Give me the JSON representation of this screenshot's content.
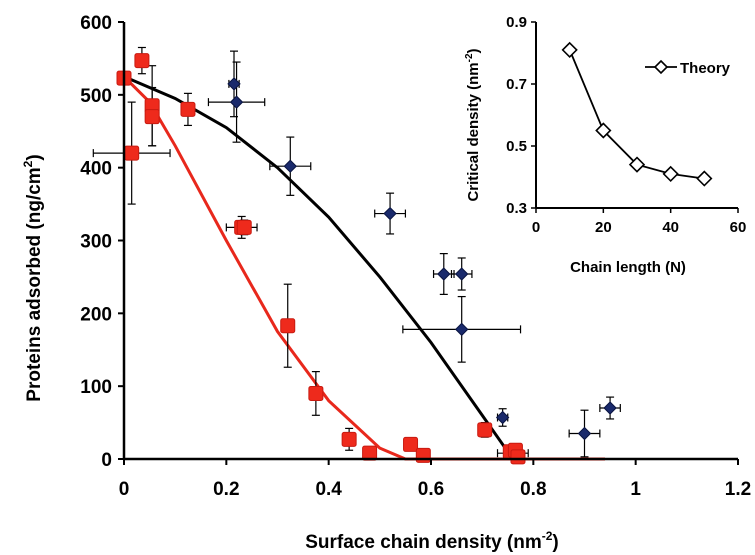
{
  "chart_data": [
    {
      "type": "scatter",
      "xlabel": "Surface chain density (nm",
      "xlabel_sup": "-2",
      "xlabel_end": ")",
      "ylabel": "Proteins adsorbed (ng/cm",
      "ylabel_sup": "2",
      "ylabel_end": ")",
      "xlim": [
        0,
        1.2
      ],
      "ylim": [
        0,
        600
      ],
      "xticks": [
        0,
        0.2,
        0.4,
        0.6,
        0.8,
        1,
        1.2
      ],
      "xtick_labels": [
        "0",
        "0.2",
        "0.4",
        "0.6",
        "0.8",
        "1",
        "1.2"
      ],
      "yticks": [
        0,
        100,
        200,
        300,
        400,
        500,
        600
      ],
      "ytick_labels": [
        "0",
        "100",
        "200",
        "300",
        "400",
        "500",
        "600"
      ],
      "grid": false,
      "series": [
        {
          "marker": "diamond",
          "color": "#1a2a6c",
          "points": [
            {
              "x": 0.215,
              "y": 515,
              "xerr": 0.01,
              "yerr": 45
            },
            {
              "x": 0.22,
              "y": 490,
              "xerr": 0.055,
              "yerr": 55
            },
            {
              "x": 0.325,
              "y": 402,
              "xerr": 0.04,
              "yerr": 40
            },
            {
              "x": 0.52,
              "y": 337,
              "xerr": 0.03,
              "yerr": 28
            },
            {
              "x": 0.625,
              "y": 254,
              "xerr": 0.02,
              "yerr": 28
            },
            {
              "x": 0.66,
              "y": 254,
              "xerr": 0.02,
              "yerr": 22
            },
            {
              "x": 0.66,
              "y": 178,
              "xerr": 0.115,
              "yerr": 45
            },
            {
              "x": 0.74,
              "y": 57,
              "xerr": 0.01,
              "yerr": 12
            },
            {
              "x": 0.76,
              "y": 8,
              "xerr": 0.03,
              "yerr": 8
            },
            {
              "x": 0.9,
              "y": 35,
              "xerr": 0.03,
              "yerr": 32
            },
            {
              "x": 0.95,
              "y": 70,
              "xerr": 0.02,
              "yerr": 15
            }
          ]
        },
        {
          "marker": "square",
          "color": "#ee2a1c",
          "points": [
            {
              "x": 0.0,
              "y": 523,
              "xerr": 0.0,
              "yerr": 0
            },
            {
              "x": 0.015,
              "y": 420,
              "xerr": 0.075,
              "yerr": 70
            },
            {
              "x": 0.035,
              "y": 547,
              "xerr": 0.01,
              "yerr": 18
            },
            {
              "x": 0.055,
              "y": 485,
              "xerr": 0.01,
              "yerr": 55
            },
            {
              "x": 0.055,
              "y": 470,
              "xerr": 0.01,
              "yerr": 40
            },
            {
              "x": 0.125,
              "y": 480,
              "xerr": 0.01,
              "yerr": 22
            },
            {
              "x": 0.23,
              "y": 318,
              "xerr": 0.03,
              "yerr": 15
            },
            {
              "x": 0.235,
              "y": 318,
              "xerr": 0.01,
              "yerr": 10
            },
            {
              "x": 0.32,
              "y": 183,
              "xerr": 0.01,
              "yerr": 57
            },
            {
              "x": 0.375,
              "y": 90,
              "xerr": 0.01,
              "yerr": 30
            },
            {
              "x": 0.44,
              "y": 27,
              "xerr": 0.01,
              "yerr": 15
            },
            {
              "x": 0.48,
              "y": 8,
              "xerr": 0.01,
              "yerr": 5
            },
            {
              "x": 0.56,
              "y": 20,
              "xerr": 0.01,
              "yerr": 5
            },
            {
              "x": 0.585,
              "y": 5,
              "xerr": 0.01,
              "yerr": 3
            },
            {
              "x": 0.705,
              "y": 40,
              "xerr": 0.01,
              "yerr": 10
            },
            {
              "x": 0.755,
              "y": 10,
              "xerr": 0.01,
              "yerr": 5
            },
            {
              "x": 0.765,
              "y": 12,
              "xerr": 0.01,
              "yerr": 5
            },
            {
              "x": 0.77,
              "y": 3,
              "xerr": 0.01,
              "yerr": 3
            }
          ]
        },
        {
          "type": "line",
          "color": "#000000",
          "x": [
            0,
            0.1,
            0.2,
            0.3,
            0.4,
            0.5,
            0.6,
            0.7,
            0.76,
            0.94
          ],
          "y": [
            525,
            495,
            455,
            400,
            332,
            250,
            160,
            60,
            0,
            0
          ]
        },
        {
          "type": "line",
          "color": "#e8281c",
          "x": [
            0,
            0.05,
            0.1,
            0.2,
            0.3,
            0.4,
            0.5,
            0.55,
            0.94
          ],
          "y": [
            525,
            490,
            430,
            300,
            175,
            80,
            15,
            0,
            0
          ]
        }
      ]
    },
    {
      "type": "line",
      "xlabel": "Chain length (N)",
      "ylabel": "Critical  density (nm",
      "ylabel_sup": "-2",
      "ylabel_end": ")",
      "xlim": [
        0,
        60
      ],
      "ylim": [
        0.3,
        0.9
      ],
      "xticks": [
        0,
        20,
        40,
        60
      ],
      "xtick_labels": [
        "0",
        "20",
        "40",
        "60"
      ],
      "yticks": [
        0.3,
        0.5,
        0.7,
        0.9
      ],
      "ytick_labels": [
        "0.3",
        "0.5",
        "0.7",
        "0.9"
      ],
      "legend": "top-right",
      "grid": false,
      "series": [
        {
          "name": "Theory",
          "marker": "open-diamond",
          "x": [
            10,
            20,
            30,
            40,
            50
          ],
          "y": [
            0.81,
            0.55,
            0.44,
            0.41,
            0.395
          ]
        }
      ]
    }
  ]
}
